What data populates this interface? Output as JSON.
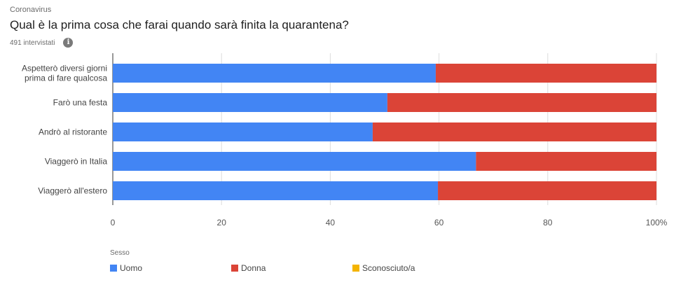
{
  "header": {
    "kicker": "Coronavirus",
    "title": "Qual è la prima cosa che farai quando sarà finita la quarantena?",
    "subtitle": "491 intervistati",
    "info_icon": "i"
  },
  "legend": {
    "title": "Sesso",
    "items": [
      {
        "label": "Uomo",
        "color": "#4285f4"
      },
      {
        "label": "Donna",
        "color": "#db4437"
      },
      {
        "label": "Sconosciuto/a",
        "color": "#f4b400"
      }
    ]
  },
  "chart_data": {
    "type": "bar",
    "orientation": "horizontal",
    "stacked": "percent",
    "categories": [
      [
        "Aspetterò diversi giorni",
        "prima di fare qualcosa"
      ],
      [
        "Farò una festa"
      ],
      [
        "Andrò al ristorante"
      ],
      [
        "Viaggerò in Italia"
      ],
      [
        "Viaggerò all'estero"
      ]
    ],
    "series": [
      {
        "name": "Uomo",
        "color": "#4285f4",
        "values": [
          59.4,
          50.5,
          47.8,
          66.8,
          59.8
        ]
      },
      {
        "name": "Donna",
        "color": "#db4437",
        "values": [
          40.6,
          49.5,
          52.2,
          33.2,
          40.2
        ]
      },
      {
        "name": "Sconosciuto/a",
        "color": "#f4b400",
        "values": [
          0,
          0,
          0,
          0,
          0
        ]
      }
    ],
    "xlim": [
      0,
      100
    ],
    "xticks": [
      "0",
      "20",
      "40",
      "60",
      "80",
      "100%"
    ],
    "grid": true,
    "legend_position": "bottom"
  }
}
